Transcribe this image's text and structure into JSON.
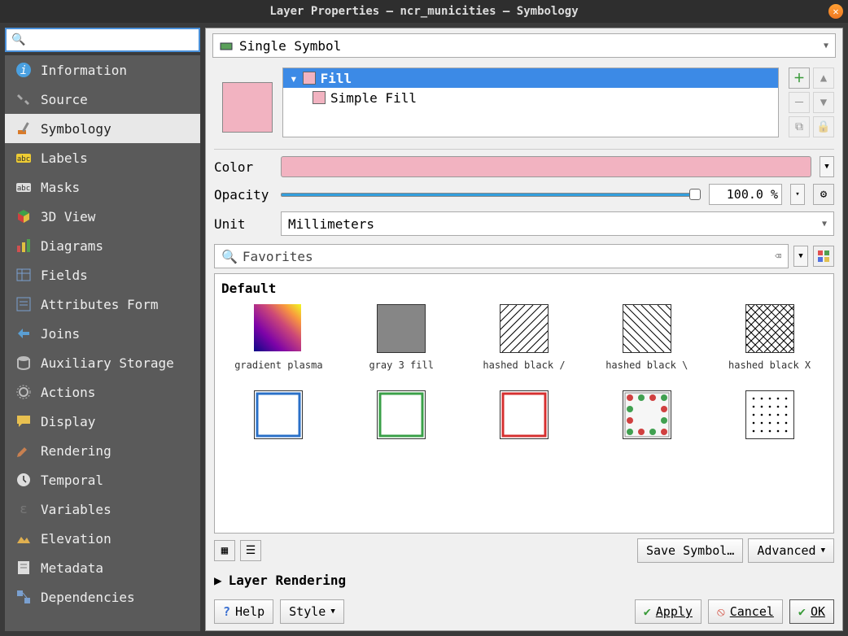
{
  "window": {
    "title": "Layer Properties — ncr_municities — Symbology"
  },
  "sidebar": {
    "items": [
      {
        "label": "Information",
        "icon": "info",
        "color": "#4aa0e0"
      },
      {
        "label": "Source",
        "icon": "wrench",
        "color": "#aaa"
      },
      {
        "label": "Symbology",
        "icon": "brush",
        "color": "#d97b2a",
        "selected": true
      },
      {
        "label": "Labels",
        "icon": "abc-y",
        "color": "#eecc33"
      },
      {
        "label": "Masks",
        "icon": "abc-g",
        "color": "#bbb"
      },
      {
        "label": "3D View",
        "icon": "cube",
        "color": "#3da04a"
      },
      {
        "label": "Diagrams",
        "icon": "diag",
        "color": "#e0c040"
      },
      {
        "label": "Fields",
        "icon": "fields",
        "color": "#7aa0d0"
      },
      {
        "label": "Attributes Form",
        "icon": "form",
        "color": "#7aa0d0"
      },
      {
        "label": "Joins",
        "icon": "join",
        "color": "#5a9fd4"
      },
      {
        "label": "Auxiliary Storage",
        "icon": "db",
        "color": "#bbb"
      },
      {
        "label": "Actions",
        "icon": "gear",
        "color": "#bbb"
      },
      {
        "label": "Display",
        "icon": "tip",
        "color": "#e8c050"
      },
      {
        "label": "Rendering",
        "icon": "brush2",
        "color": "#c88050"
      },
      {
        "label": "Temporal",
        "icon": "clock",
        "color": "#ddd"
      },
      {
        "label": "Variables",
        "icon": "eps",
        "color": "#777"
      },
      {
        "label": "Elevation",
        "icon": "elev",
        "color": "#e0b050"
      },
      {
        "label": "Metadata",
        "icon": "meta",
        "color": "#ddd"
      },
      {
        "label": "Dependencies",
        "icon": "dep",
        "color": "#7aa0d0"
      }
    ]
  },
  "renderer": {
    "type": "Single Symbol"
  },
  "tree": {
    "fill_label": "Fill",
    "simple_fill_label": "Simple Fill"
  },
  "color": {
    "label": "Color",
    "value": "#f2b3c1"
  },
  "opacity": {
    "label": "Opacity",
    "value": "100.0 %"
  },
  "unit": {
    "label": "Unit",
    "value": "Millimeters"
  },
  "favorites": {
    "placeholder": "Favorites"
  },
  "gallery": {
    "heading": "Default",
    "items": [
      {
        "name": "gradient plasma",
        "type": "gradient"
      },
      {
        "name": "gray 3 fill",
        "type": "gray"
      },
      {
        "name": "hashed black /",
        "type": "hash-fwd"
      },
      {
        "name": "hashed black \\",
        "type": "hash-back"
      },
      {
        "name": "hashed black X",
        "type": "hash-x"
      },
      {
        "name": "",
        "type": "outline-blue"
      },
      {
        "name": "",
        "type": "outline-green"
      },
      {
        "name": "",
        "type": "outline-red"
      },
      {
        "name": "",
        "type": "dots-color"
      },
      {
        "name": "",
        "type": "dots-black"
      }
    ]
  },
  "buttons": {
    "save_symbol": "Save Symbol…",
    "advanced": "Advanced",
    "layer_rendering": "Layer Rendering",
    "help": "Help",
    "style": "Style",
    "apply": "Apply",
    "cancel": "Cancel",
    "ok": "OK"
  }
}
